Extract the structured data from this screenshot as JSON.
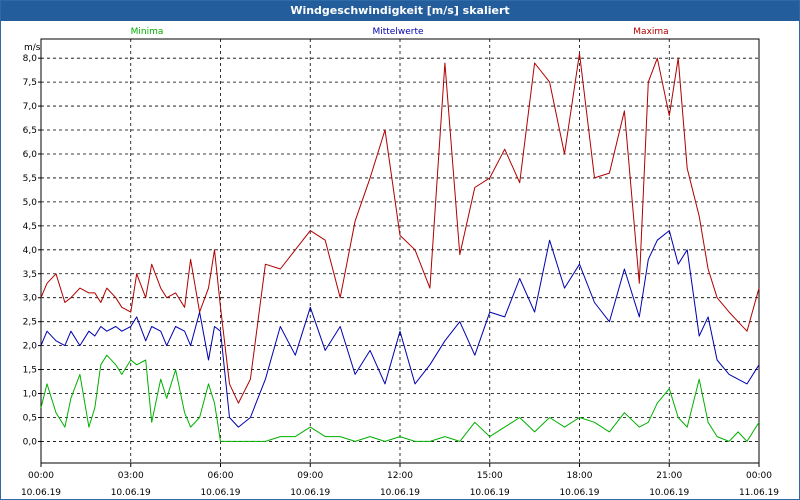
{
  "window": {
    "title": "Windgeschwindigkeit [m/s] skaliert"
  },
  "chart_data": {
    "type": "line",
    "title": "Windgeschwindigkeit [m/s] skaliert",
    "ylabel": "m/s",
    "xlabel": "",
    "ylim": [
      -0.45,
      8.4
    ],
    "xlim": [
      0,
      72
    ],
    "grid": true,
    "legend": "top",
    "yticks": [
      "0,0",
      "0,5",
      "1,0",
      "1,5",
      "2,0",
      "2,5",
      "3,0",
      "3,5",
      "4,0",
      "4,5",
      "5,0",
      "5,5",
      "6,0",
      "6,5",
      "7,0",
      "7,5",
      "8,0"
    ],
    "ytick_values": [
      0,
      0.5,
      1,
      1.5,
      2,
      2.5,
      3,
      3.5,
      4,
      4.5,
      5,
      5.5,
      6,
      6.5,
      7,
      7.5,
      8
    ],
    "xticks": [
      {
        "time": "00:00",
        "date": "10.06.19"
      },
      {
        "time": "03:00",
        "date": "10.06.19"
      },
      {
        "time": "06:00",
        "date": "10.06.19"
      },
      {
        "time": "09:00",
        "date": "10.06.19"
      },
      {
        "time": "12:00",
        "date": "10.06.19"
      },
      {
        "time": "15:00",
        "date": "10.06.19"
      },
      {
        "time": "18:00",
        "date": "10.06.19"
      },
      {
        "time": "21:00",
        "date": "10.06.19"
      },
      {
        "time": "00:00",
        "date": "11.06.19"
      }
    ],
    "xtick_hours": [
      0,
      3,
      6,
      9,
      12,
      15,
      18,
      21,
      24
    ],
    "series": [
      {
        "name": "Minima",
        "color": "#00b000",
        "x": [
          0,
          0.2,
          0.5,
          0.8,
          1.0,
          1.3,
          1.6,
          1.8,
          2.0,
          2.2,
          2.5,
          2.7,
          3.0,
          3.2,
          3.5,
          3.7,
          4.0,
          4.2,
          4.5,
          4.8,
          5.0,
          5.3,
          5.6,
          5.8,
          6.0,
          6.3,
          6.6,
          7.0,
          7.5,
          8.0,
          8.5,
          9.0,
          9.5,
          10.0,
          10.5,
          11.0,
          11.5,
          12.0,
          12.5,
          13.0,
          13.5,
          14.0,
          14.5,
          15.0,
          15.5,
          16.0,
          16.5,
          17.0,
          17.5,
          18.0,
          18.5,
          19.0,
          19.5,
          20.0,
          20.3,
          20.6,
          21.0,
          21.3,
          21.6,
          22.0,
          22.3,
          22.6,
          23.0,
          23.3,
          23.6,
          24.0
        ],
        "y": [
          0.7,
          1.2,
          0.6,
          0.3,
          0.9,
          1.4,
          0.3,
          0.7,
          1.6,
          1.8,
          1.6,
          1.4,
          1.7,
          1.6,
          1.7,
          0.4,
          1.3,
          0.9,
          1.5,
          0.6,
          0.3,
          0.5,
          1.2,
          0.8,
          0.0,
          0.0,
          0.0,
          0.0,
          0.0,
          0.1,
          0.1,
          0.3,
          0.1,
          0.1,
          0.0,
          0.1,
          0.0,
          0.1,
          0.0,
          0.0,
          0.1,
          0.0,
          0.4,
          0.1,
          0.3,
          0.5,
          0.2,
          0.5,
          0.3,
          0.5,
          0.4,
          0.2,
          0.6,
          0.3,
          0.4,
          0.8,
          1.1,
          0.5,
          0.3,
          1.3,
          0.4,
          0.1,
          0.0,
          0.2,
          0.0,
          0.4
        ]
      },
      {
        "name": "Mittelwerte",
        "color": "#0000b0",
        "x": [
          0,
          0.2,
          0.5,
          0.8,
          1.0,
          1.3,
          1.6,
          1.8,
          2.0,
          2.2,
          2.5,
          2.7,
          3.0,
          3.2,
          3.5,
          3.7,
          4.0,
          4.2,
          4.5,
          4.8,
          5.0,
          5.3,
          5.6,
          5.8,
          6.0,
          6.3,
          6.6,
          7.0,
          7.5,
          8.0,
          8.5,
          9.0,
          9.5,
          10.0,
          10.5,
          11.0,
          11.5,
          12.0,
          12.5,
          13.0,
          13.5,
          14.0,
          14.5,
          15.0,
          15.5,
          16.0,
          16.5,
          17.0,
          17.5,
          18.0,
          18.5,
          19.0,
          19.5,
          20.0,
          20.3,
          20.6,
          21.0,
          21.3,
          21.6,
          22.0,
          22.3,
          22.6,
          23.0,
          23.3,
          23.6,
          24.0
        ],
        "y": [
          2.0,
          2.3,
          2.1,
          2.0,
          2.3,
          2.0,
          2.3,
          2.2,
          2.4,
          2.3,
          2.4,
          2.3,
          2.4,
          2.6,
          2.1,
          2.4,
          2.3,
          2.0,
          2.4,
          2.3,
          2.0,
          2.7,
          1.7,
          2.4,
          2.3,
          0.5,
          0.3,
          0.5,
          1.3,
          2.4,
          1.8,
          2.8,
          1.9,
          2.4,
          1.4,
          1.9,
          1.2,
          2.3,
          1.2,
          1.6,
          2.1,
          2.5,
          1.8,
          2.7,
          2.6,
          3.4,
          2.7,
          4.2,
          3.2,
          3.7,
          2.9,
          2.5,
          3.6,
          2.6,
          3.8,
          4.2,
          4.4,
          3.7,
          4.0,
          2.2,
          2.6,
          1.7,
          1.4,
          1.3,
          1.2,
          1.6
        ]
      },
      {
        "name": "Maxima",
        "color": "#b00000",
        "x": [
          0,
          0.2,
          0.5,
          0.8,
          1.0,
          1.3,
          1.6,
          1.8,
          2.0,
          2.2,
          2.5,
          2.7,
          3.0,
          3.2,
          3.5,
          3.7,
          4.0,
          4.2,
          4.5,
          4.8,
          5.0,
          5.3,
          5.6,
          5.8,
          6.0,
          6.3,
          6.6,
          7.0,
          7.5,
          8.0,
          8.5,
          9.0,
          9.5,
          10.0,
          10.5,
          11.0,
          11.5,
          12.0,
          12.5,
          13.0,
          13.5,
          14.0,
          14.5,
          15.0,
          15.5,
          16.0,
          16.5,
          17.0,
          17.5,
          18.0,
          18.5,
          19.0,
          19.5,
          20.0,
          20.3,
          20.6,
          21.0,
          21.3,
          21.6,
          22.0,
          22.3,
          22.6,
          23.0,
          23.3,
          23.6,
          24.0
        ],
        "y": [
          3.0,
          3.3,
          3.5,
          2.9,
          3.0,
          3.2,
          3.1,
          3.1,
          2.9,
          3.2,
          3.0,
          2.8,
          2.7,
          3.5,
          3.0,
          3.7,
          3.2,
          3.0,
          3.1,
          2.8,
          3.8,
          2.7,
          3.2,
          4.0,
          2.8,
          1.2,
          0.8,
          1.3,
          3.7,
          3.6,
          4.0,
          4.4,
          4.2,
          3.0,
          4.6,
          5.5,
          6.5,
          4.3,
          4.0,
          3.2,
          7.9,
          3.9,
          5.3,
          5.5,
          6.1,
          5.4,
          7.9,
          7.5,
          6.0,
          8.1,
          5.5,
          5.6,
          6.9,
          3.3,
          7.5,
          8.0,
          6.8,
          8.0,
          5.7,
          4.7,
          3.6,
          3.0,
          2.7,
          2.5,
          2.3,
          3.2
        ]
      }
    ]
  }
}
